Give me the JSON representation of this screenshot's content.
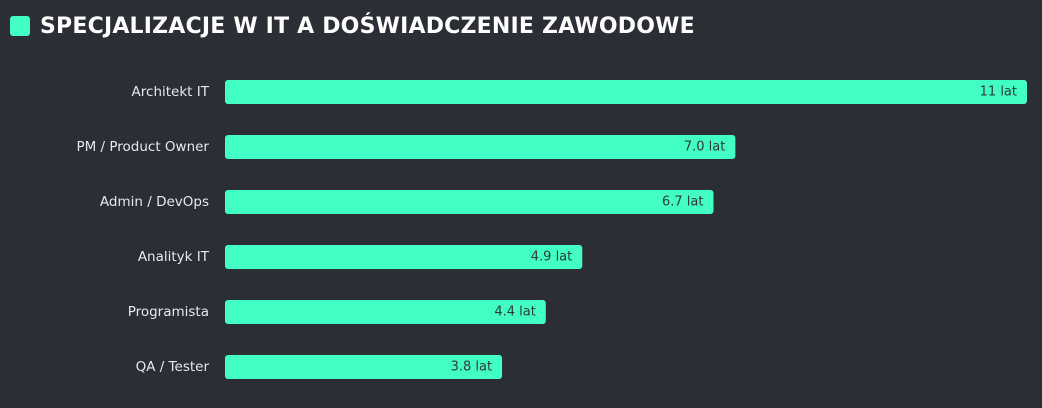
{
  "header": {
    "title": "SPECJALIZACJE W IT A DOŚWIADCZENIE ZAWODOWE"
  },
  "colors": {
    "background": "#2b2e35",
    "accent": "#42ffc4",
    "label_text": "#e6e8ec",
    "value_text": "#2f3a3a"
  },
  "chart_data": {
    "type": "bar",
    "orientation": "horizontal",
    "title": "SPECJALIZACJE W IT A DOŚWIADCZENIE ZAWODOWE",
    "categories": [
      "Architekt IT",
      "PM / Product Owner",
      "Admin / DevOps",
      "Analityk IT",
      "Programista",
      "QA / Tester"
    ],
    "values": [
      11,
      7.0,
      6.7,
      4.9,
      4.4,
      3.8
    ],
    "value_labels": [
      "11 lat",
      "7.0 lat",
      "6.7 lat",
      "4.9 lat",
      "4.4 lat",
      "3.8 lat"
    ],
    "xlim": [
      0,
      11
    ],
    "grid": false,
    "legend": "none"
  }
}
